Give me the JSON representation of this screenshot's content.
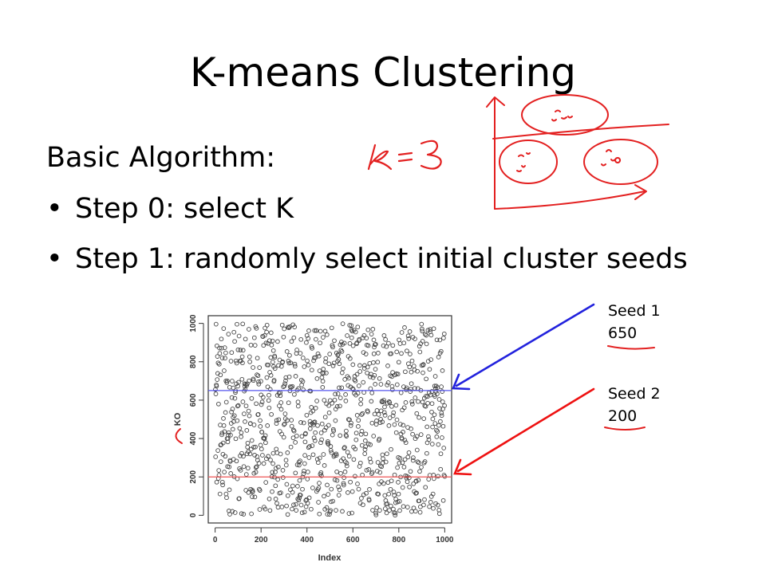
{
  "slide": {
    "title": "K-means Clustering",
    "subhead": "Basic Algorithm:",
    "bullets": [
      "Step 0: select K",
      "Step 1: randomly select initial cluster seeds"
    ]
  },
  "annotations": {
    "k_note": "k=3",
    "seed1": {
      "label": "Seed 1",
      "value": "650",
      "color": "#2222dd"
    },
    "seed2": {
      "label": "Seed 2",
      "value": "200",
      "color": "#ee1111"
    },
    "ink_color": "#e32020"
  },
  "chart_data": {
    "type": "scatter",
    "xlabel": "Index",
    "ylabel": "KO",
    "xlim": [
      -30,
      1030
    ],
    "ylim": [
      -40,
      1040
    ],
    "x_ticks": [
      0,
      200,
      400,
      600,
      800,
      1000
    ],
    "y_ticks": [
      0,
      200,
      400,
      600,
      800,
      1000
    ],
    "n_points": 1000,
    "y_distribution": "uniform random 0-1000",
    "hlines": [
      {
        "y": 650,
        "color": "#5555ee"
      },
      {
        "y": 200,
        "color": "#ee5555"
      }
    ]
  }
}
